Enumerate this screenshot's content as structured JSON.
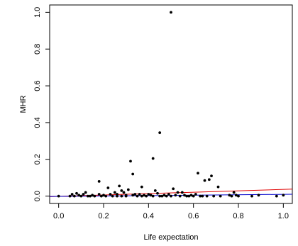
{
  "chart_data": {
    "type": "scatter",
    "xlabel": "Life expectation",
    "ylabel": "MHR",
    "xlim": [
      -0.04,
      1.04
    ],
    "ylim": [
      -0.04,
      1.04
    ],
    "x_ticks": [
      0.0,
      0.2,
      0.4,
      0.6,
      0.8,
      1.0
    ],
    "y_ticks": [
      0.0,
      0.2,
      0.4,
      0.6,
      0.8,
      1.0
    ],
    "x_tick_labels": [
      "0.0",
      "0.2",
      "0.4",
      "0.6",
      "0.8",
      "1.0"
    ],
    "y_tick_labels": [
      "0.0",
      "0.2",
      "0.4",
      "0.6",
      "0.8",
      "1.0"
    ],
    "grid": false,
    "point_color": "#000000",
    "points": [
      [
        0.5,
        1.0
      ],
      [
        0.45,
        0.345
      ],
      [
        0.42,
        0.205
      ],
      [
        0.32,
        0.19
      ],
      [
        0.62,
        0.125
      ],
      [
        0.33,
        0.12
      ],
      [
        0.68,
        0.11
      ],
      [
        0.67,
        0.09
      ],
      [
        0.65,
        0.085
      ],
      [
        0.18,
        0.08
      ],
      [
        0.27,
        0.055
      ],
      [
        0.37,
        0.05
      ],
      [
        0.22,
        0.045
      ],
      [
        0.71,
        0.05
      ],
      [
        0.51,
        0.04
      ],
      [
        0.31,
        0.035
      ],
      [
        0.43,
        0.03
      ],
      [
        0.53,
        0.02
      ],
      [
        0.55,
        0.02
      ],
      [
        0.29,
        0.02
      ],
      [
        0.12,
        0.02
      ],
      [
        0.25,
        0.02
      ],
      [
        0.08,
        0.015
      ],
      [
        0.23,
        0.01
      ],
      [
        0.34,
        0.01
      ],
      [
        0.78,
        0.02
      ],
      [
        0.61,
        0.01
      ],
      [
        0.44,
        0.015
      ],
      [
        0.4,
        0.01
      ],
      [
        0.36,
        0.01
      ],
      [
        0.0,
        0.0
      ],
      [
        0.05,
        0.0
      ],
      [
        0.06,
        0.01
      ],
      [
        0.07,
        0.0
      ],
      [
        0.09,
        0.005
      ],
      [
        0.1,
        0.0
      ],
      [
        0.11,
        0.01
      ],
      [
        0.13,
        0.0
      ],
      [
        0.14,
        0.0
      ],
      [
        0.15,
        0.005
      ],
      [
        0.16,
        0.0
      ],
      [
        0.19,
        0.0
      ],
      [
        0.2,
        0.005
      ],
      [
        0.21,
        0.0
      ],
      [
        0.24,
        0.0
      ],
      [
        0.26,
        0.01
      ],
      [
        0.28,
        0.0
      ],
      [
        0.3,
        0.005
      ],
      [
        0.35,
        0.0
      ],
      [
        0.38,
        0.005
      ],
      [
        0.39,
        0.0
      ],
      [
        0.41,
        0.005
      ],
      [
        0.46,
        0.0
      ],
      [
        0.47,
        0.005
      ],
      [
        0.48,
        0.0
      ],
      [
        0.49,
        0.01
      ],
      [
        0.52,
        0.005
      ],
      [
        0.54,
        0.0
      ],
      [
        0.56,
        0.005
      ],
      [
        0.57,
        0.0
      ],
      [
        0.58,
        0.0
      ],
      [
        0.59,
        0.005
      ],
      [
        0.6,
        0.0
      ],
      [
        0.63,
        0.0
      ],
      [
        0.64,
        0.0
      ],
      [
        0.66,
        0.0
      ],
      [
        0.69,
        0.0
      ],
      [
        0.72,
        0.0
      ],
      [
        0.76,
        0.005
      ],
      [
        0.77,
        0.0
      ],
      [
        0.79,
        0.005
      ],
      [
        0.8,
        0.0
      ],
      [
        0.86,
        0.0
      ],
      [
        0.89,
        0.005
      ],
      [
        0.97,
        0.0
      ],
      [
        1.0,
        0.005
      ],
      [
        0.28,
        0.03
      ],
      [
        0.33,
        0.005
      ],
      [
        0.42,
        0.0
      ],
      [
        0.5,
        0.0
      ],
      [
        0.18,
        0.01
      ],
      [
        0.26,
        0.0
      ],
      [
        0.3,
        0.0
      ],
      [
        0.37,
        0.0
      ],
      [
        0.45,
        0.0
      ]
    ],
    "lines": [
      {
        "color": "#e00000",
        "x": [
          -0.04,
          1.04
        ],
        "y": [
          -0.003,
          0.038
        ]
      },
      {
        "color": "#0000cc",
        "x": [
          -0.04,
          1.04
        ],
        "y": [
          -0.002,
          0.01
        ]
      }
    ]
  }
}
